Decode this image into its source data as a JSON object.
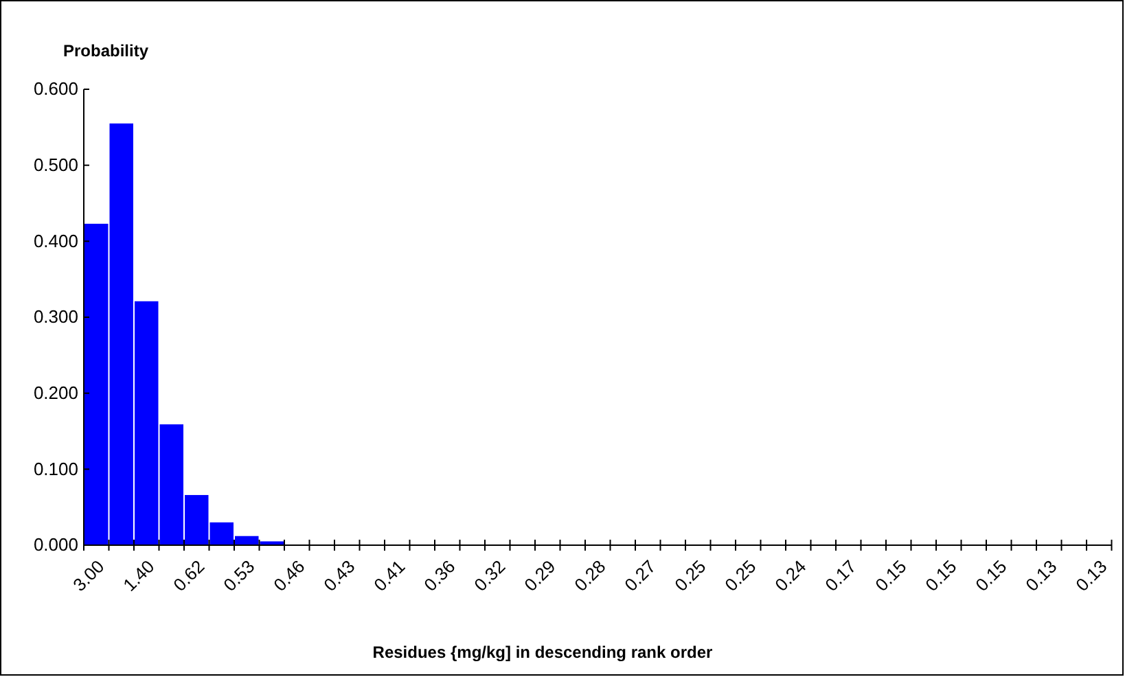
{
  "chart_data": {
    "type": "bar",
    "ylabel": "Probability",
    "xlabel": "Residues {mg/kg] in descending rank order",
    "categories": [
      "3.00",
      null,
      "1.40",
      null,
      "0.62",
      null,
      "0.53",
      null,
      "0.46",
      null,
      "0.43",
      null,
      "0.41",
      null,
      "0.36",
      null,
      "0.32",
      null,
      "0.29",
      null,
      "0.28",
      null,
      "0.27",
      null,
      "0.25",
      null,
      "0.25",
      null,
      "0.24",
      null,
      "0.17",
      null,
      "0.15",
      null,
      "0.15",
      null,
      "0.15",
      null,
      "0.13",
      null,
      "0.13"
    ],
    "values": [
      0.423,
      0.555,
      0.321,
      0.159,
      0.066,
      0.03,
      0.012,
      0.005,
      0,
      0,
      0,
      0,
      0,
      0,
      0,
      0,
      0,
      0,
      0,
      0,
      0,
      0,
      0,
      0,
      0,
      0,
      0,
      0,
      0,
      0,
      0,
      0,
      0,
      0,
      0,
      0,
      0,
      0,
      0,
      0,
      0
    ],
    "color": "#0000ff",
    "ylim": [
      0,
      0.6
    ],
    "yticks": [
      {
        "value": 0,
        "label": "0.000"
      },
      {
        "value": 0.1,
        "label": "0.100"
      },
      {
        "value": 0.2,
        "label": "0.200"
      },
      {
        "value": 0.3,
        "label": "0.300"
      },
      {
        "value": 0.4,
        "label": "0.400"
      },
      {
        "value": 0.5,
        "label": "0.500"
      },
      {
        "value": 0.6,
        "label": "0.600"
      }
    ]
  }
}
